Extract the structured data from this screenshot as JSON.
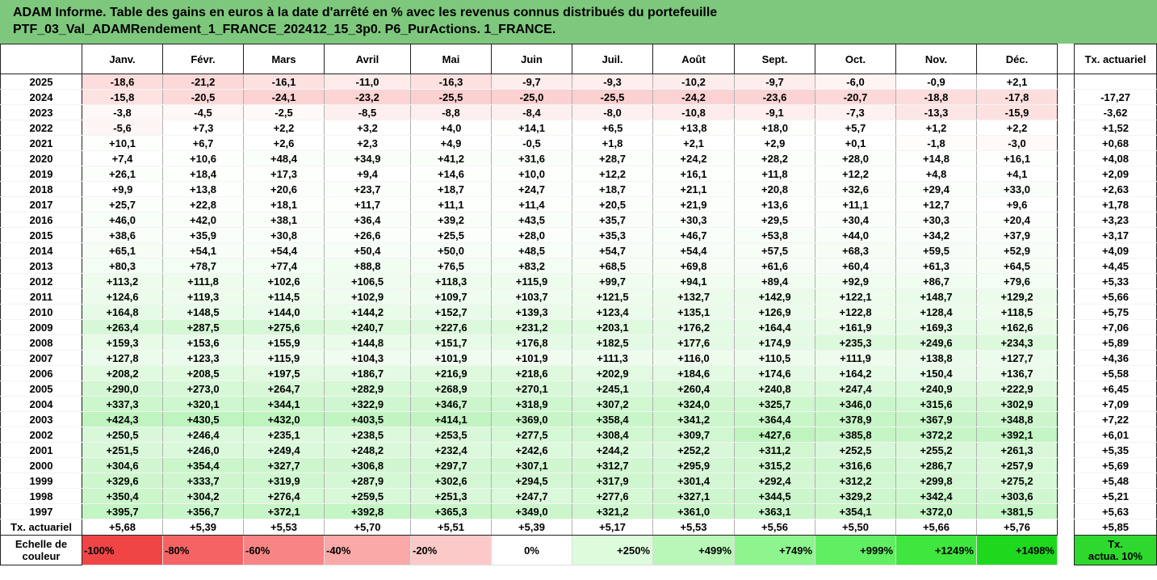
{
  "title": {
    "line1": "ADAM Informe. Table des gains en euros à la date d'arrêté en % avec les revenus connus distribués du portefeuille",
    "line2": "PTF_03_Val_ADAMRendement_1_FRANCE_202412_15_3p0. P6_PurActions. 1_FRANCE."
  },
  "months": [
    "Janv.",
    "Févr.",
    "Mars",
    "Avril",
    "Mai",
    "Juin",
    "Juil.",
    "Août",
    "Sept.",
    "Oct.",
    "Nov.",
    "Déc."
  ],
  "tx_header": "Tx. actuariel",
  "rows": [
    {
      "year": "2025",
      "v": [
        "-18,6",
        "-21,2",
        "-16,1",
        "-11,0",
        "-16,3",
        "-9,7",
        "-9,3",
        "-10,2",
        "-9,7",
        "-6,0",
        "-0,9",
        "+2,1"
      ],
      "tx": ""
    },
    {
      "year": "2024",
      "v": [
        "-15,8",
        "-20,5",
        "-24,1",
        "-23,2",
        "-25,5",
        "-25,0",
        "-25,5",
        "-24,2",
        "-23,6",
        "-20,7",
        "-18,8",
        "-17,8"
      ],
      "tx": "-17,27"
    },
    {
      "year": "2023",
      "v": [
        "-3,8",
        "-4,5",
        "-2,5",
        "-8,5",
        "-8,8",
        "-8,4",
        "-8,0",
        "-10,8",
        "-9,1",
        "-7,3",
        "-13,3",
        "-15,9"
      ],
      "tx": "-3,62"
    },
    {
      "year": "2022",
      "v": [
        "-5,6",
        "+7,3",
        "+2,2",
        "+3,2",
        "+4,0",
        "+14,1",
        "+6,5",
        "+13,8",
        "+18,0",
        "+5,7",
        "+1,2",
        "+2,2"
      ],
      "tx": "+1,52"
    },
    {
      "year": "2021",
      "v": [
        "+10,1",
        "+6,7",
        "+2,6",
        "+2,3",
        "+4,9",
        "-0,5",
        "+1,8",
        "+2,1",
        "+2,9",
        "+0,1",
        "-1,8",
        "-3,0"
      ],
      "tx": "+0,68"
    },
    {
      "year": "2020",
      "v": [
        "+7,4",
        "+10,6",
        "+48,4",
        "+34,9",
        "+41,2",
        "+31,6",
        "+28,7",
        "+24,2",
        "+28,2",
        "+28,0",
        "+14,8",
        "+16,1"
      ],
      "tx": "+4,08"
    },
    {
      "year": "2019",
      "v": [
        "+26,1",
        "+18,4",
        "+17,3",
        "+9,4",
        "+14,6",
        "+10,0",
        "+12,2",
        "+16,1",
        "+11,8",
        "+12,2",
        "+4,8",
        "+4,1"
      ],
      "tx": "+2,09"
    },
    {
      "year": "2018",
      "v": [
        "+9,9",
        "+13,8",
        "+20,6",
        "+23,7",
        "+18,7",
        "+24,7",
        "+18,7",
        "+21,1",
        "+20,8",
        "+32,6",
        "+29,4",
        "+33,0"
      ],
      "tx": "+2,63"
    },
    {
      "year": "2017",
      "v": [
        "+25,7",
        "+22,8",
        "+18,1",
        "+11,7",
        "+11,1",
        "+11,4",
        "+20,5",
        "+21,9",
        "+13,6",
        "+11,1",
        "+12,7",
        "+9,6"
      ],
      "tx": "+1,78"
    },
    {
      "year": "2016",
      "v": [
        "+46,0",
        "+42,0",
        "+38,1",
        "+36,4",
        "+39,2",
        "+43,5",
        "+35,7",
        "+30,3",
        "+29,5",
        "+30,4",
        "+30,3",
        "+20,4"
      ],
      "tx": "+3,23"
    },
    {
      "year": "2015",
      "v": [
        "+38,6",
        "+35,9",
        "+30,8",
        "+26,6",
        "+25,5",
        "+28,0",
        "+35,3",
        "+46,7",
        "+53,8",
        "+44,0",
        "+34,2",
        "+37,9"
      ],
      "tx": "+3,17"
    },
    {
      "year": "2014",
      "v": [
        "+65,1",
        "+54,1",
        "+54,4",
        "+50,4",
        "+50,0",
        "+48,5",
        "+54,7",
        "+54,4",
        "+57,5",
        "+68,3",
        "+59,5",
        "+52,9"
      ],
      "tx": "+4,09"
    },
    {
      "year": "2013",
      "v": [
        "+80,3",
        "+78,7",
        "+77,4",
        "+88,8",
        "+76,5",
        "+83,2",
        "+68,5",
        "+69,8",
        "+61,6",
        "+60,4",
        "+61,3",
        "+64,5"
      ],
      "tx": "+4,45"
    },
    {
      "year": "2012",
      "v": [
        "+113,2",
        "+111,8",
        "+102,6",
        "+106,5",
        "+118,3",
        "+115,9",
        "+99,7",
        "+94,1",
        "+89,4",
        "+92,9",
        "+86,7",
        "+79,6"
      ],
      "tx": "+5,33"
    },
    {
      "year": "2011",
      "v": [
        "+124,6",
        "+119,3",
        "+114,5",
        "+102,9",
        "+109,7",
        "+103,7",
        "+121,5",
        "+132,7",
        "+142,9",
        "+122,1",
        "+148,7",
        "+129,2"
      ],
      "tx": "+5,66"
    },
    {
      "year": "2010",
      "v": [
        "+164,8",
        "+148,5",
        "+144,0",
        "+144,2",
        "+152,7",
        "+139,3",
        "+123,4",
        "+135,1",
        "+126,9",
        "+122,8",
        "+128,4",
        "+118,5"
      ],
      "tx": "+5,75"
    },
    {
      "year": "2009",
      "v": [
        "+263,4",
        "+287,5",
        "+275,6",
        "+240,7",
        "+227,6",
        "+231,2",
        "+203,1",
        "+176,2",
        "+164,4",
        "+161,9",
        "+169,3",
        "+162,6"
      ],
      "tx": "+7,06"
    },
    {
      "year": "2008",
      "v": [
        "+159,3",
        "+153,6",
        "+155,9",
        "+144,8",
        "+151,7",
        "+176,8",
        "+182,5",
        "+177,6",
        "+174,9",
        "+235,3",
        "+249,6",
        "+234,3"
      ],
      "tx": "+5,89"
    },
    {
      "year": "2007",
      "v": [
        "+127,8",
        "+123,3",
        "+115,9",
        "+104,3",
        "+101,9",
        "+101,9",
        "+111,3",
        "+116,0",
        "+110,5",
        "+111,9",
        "+138,8",
        "+127,7"
      ],
      "tx": "+4,36"
    },
    {
      "year": "2006",
      "v": [
        "+208,2",
        "+208,5",
        "+197,5",
        "+186,7",
        "+216,9",
        "+218,6",
        "+202,9",
        "+184,6",
        "+174,6",
        "+164,2",
        "+150,4",
        "+136,7"
      ],
      "tx": "+5,58"
    },
    {
      "year": "2005",
      "v": [
        "+290,0",
        "+273,0",
        "+264,7",
        "+282,9",
        "+268,9",
        "+270,1",
        "+245,1",
        "+260,4",
        "+240,8",
        "+247,4",
        "+240,9",
        "+222,9"
      ],
      "tx": "+6,45"
    },
    {
      "year": "2004",
      "v": [
        "+337,3",
        "+320,1",
        "+344,1",
        "+322,9",
        "+346,7",
        "+318,9",
        "+307,2",
        "+324,0",
        "+325,7",
        "+346,0",
        "+315,6",
        "+302,9"
      ],
      "tx": "+7,09"
    },
    {
      "year": "2003",
      "v": [
        "+424,3",
        "+430,5",
        "+432,0",
        "+403,5",
        "+414,1",
        "+369,0",
        "+358,4",
        "+341,2",
        "+364,4",
        "+378,9",
        "+367,9",
        "+348,8"
      ],
      "tx": "+7,22"
    },
    {
      "year": "2002",
      "v": [
        "+250,5",
        "+246,4",
        "+235,1",
        "+238,5",
        "+253,5",
        "+277,5",
        "+308,4",
        "+309,7",
        "+427,6",
        "+385,8",
        "+372,2",
        "+392,1"
      ],
      "tx": "+6,01"
    },
    {
      "year": "2001",
      "v": [
        "+251,5",
        "+246,0",
        "+249,4",
        "+248,2",
        "+232,4",
        "+242,6",
        "+244,2",
        "+252,2",
        "+311,2",
        "+252,5",
        "+255,2",
        "+261,3"
      ],
      "tx": "+5,35"
    },
    {
      "year": "2000",
      "v": [
        "+304,6",
        "+354,4",
        "+327,7",
        "+306,8",
        "+297,7",
        "+307,1",
        "+312,7",
        "+295,9",
        "+315,2",
        "+316,6",
        "+286,7",
        "+257,9"
      ],
      "tx": "+5,69"
    },
    {
      "year": "1999",
      "v": [
        "+329,6",
        "+333,7",
        "+319,9",
        "+287,9",
        "+302,6",
        "+294,5",
        "+317,9",
        "+301,4",
        "+292,4",
        "+312,2",
        "+299,8",
        "+275,2"
      ],
      "tx": "+5,48"
    },
    {
      "year": "1998",
      "v": [
        "+350,4",
        "+304,2",
        "+276,4",
        "+259,5",
        "+251,3",
        "+247,7",
        "+277,6",
        "+327,1",
        "+344,5",
        "+329,2",
        "+342,4",
        "+303,6"
      ],
      "tx": "+5,21"
    },
    {
      "year": "1997",
      "v": [
        "+395,7",
        "+356,7",
        "+372,1",
        "+392,8",
        "+365,3",
        "+349,0",
        "+321,2",
        "+361,0",
        "+363,1",
        "+354,1",
        "+372,0",
        "+381,5"
      ],
      "tx": "+5,63"
    }
  ],
  "tx_row": {
    "label": "Tx. actuariel",
    "v": [
      "+5,68",
      "+5,39",
      "+5,53",
      "+5,70",
      "+5,51",
      "+5,39",
      "+5,17",
      "+5,53",
      "+5,56",
      "+5,50",
      "+5,66",
      "+5,76"
    ],
    "total": "+5,85"
  },
  "legend": {
    "label_line1": "Echelle de",
    "label_line2": "couleur",
    "items": [
      {
        "label": "-100%",
        "color": "#f04545",
        "align": "left"
      },
      {
        "label": "-80%",
        "color": "#f46464",
        "align": "left"
      },
      {
        "label": "-60%",
        "color": "#f78585",
        "align": "left"
      },
      {
        "label": "-40%",
        "color": "#faa8a8",
        "align": "left"
      },
      {
        "label": "-20%",
        "color": "#fcc9c9",
        "align": "left"
      },
      {
        "label": "0%",
        "color": "#ffffff",
        "align": "center"
      },
      {
        "label": "+250%",
        "color": "#dcfcdc",
        "align": "right"
      },
      {
        "label": "+499%",
        "color": "#b9f7b9",
        "align": "right"
      },
      {
        "label": "+749%",
        "color": "#8ef58e",
        "align": "right"
      },
      {
        "label": "+999%",
        "color": "#62ee62",
        "align": "right"
      },
      {
        "label": "+1249%",
        "color": "#3ee63e",
        "align": "right"
      },
      {
        "label": "+1498%",
        "color": "#1ed81e",
        "align": "right"
      }
    ],
    "tx_line1": "Tx.",
    "tx_line2": "actua. 10%",
    "tx_color": "#2ed82e"
  },
  "scale": {
    "neg_color": "#f04545",
    "pos_color": "#1ed81e",
    "pos_max": 1498
  }
}
